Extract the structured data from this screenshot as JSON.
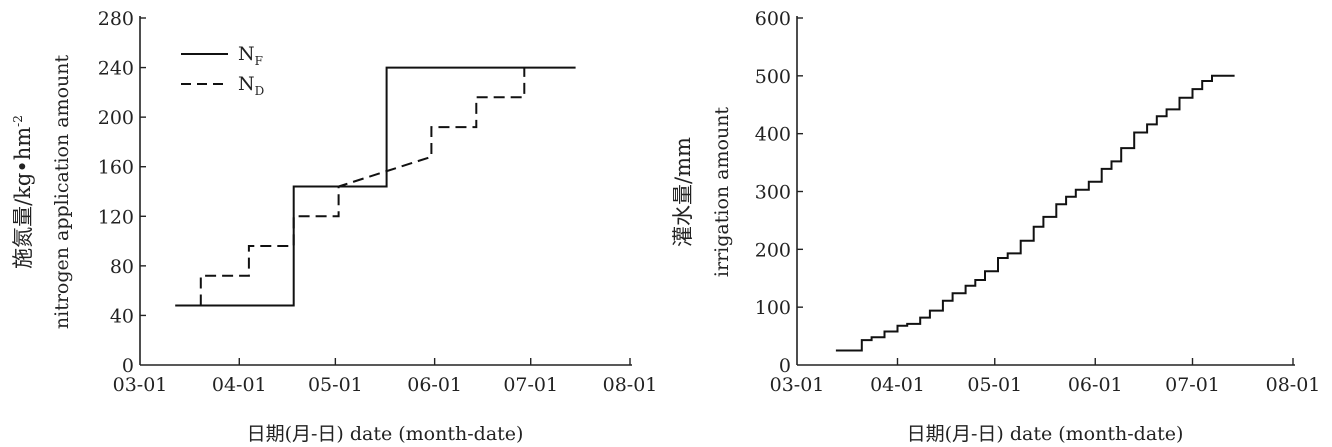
{
  "chart_data": [
    {
      "type": "line",
      "step": true,
      "title": "",
      "xlabel": "日期(月-日) date (month-date)",
      "ylabel_cn": "施氮量/kg•hm",
      "ylabel_sup": "-2",
      "ylabel_en": "nitrogen application amount",
      "x_unit": "days since 03-01",
      "xlim": [
        0,
        153
      ],
      "ylim": [
        0,
        280
      ],
      "x_ticks": [
        {
          "label": "03-01",
          "value": 0
        },
        {
          "label": "04-01",
          "value": 31
        },
        {
          "label": "05-01",
          "value": 61
        },
        {
          "label": "06-01",
          "value": 92
        },
        {
          "label": "07-01",
          "value": 122
        },
        {
          "label": "08-01",
          "value": 153
        }
      ],
      "y_ticks": [
        0,
        40,
        80,
        120,
        160,
        200,
        240,
        280
      ],
      "legend_position": "top-left",
      "series": [
        {
          "name": "N",
          "sub": "F",
          "style": "solid",
          "x": [
            11,
            48,
            48,
            77,
            77,
            136
          ],
          "y": [
            48,
            48,
            144,
            144,
            240,
            240
          ]
        },
        {
          "name": "N",
          "sub": "D",
          "style": "dashed",
          "x": [
            19,
            19,
            34,
            34,
            48,
            48,
            62,
            62,
            91,
            91,
            105,
            105,
            120,
            120
          ],
          "y": [
            48,
            72,
            72,
            96,
            96,
            120,
            120,
            144,
            168,
            192,
            192,
            216,
            216,
            240
          ]
        }
      ]
    },
    {
      "type": "line",
      "step": true,
      "title": "",
      "xlabel": "日期(月-日) date (month-date)",
      "ylabel_cn": "灌水量/mm",
      "ylabel_en": "irrigation amount",
      "x_unit": "days since 03-01",
      "xlim": [
        0,
        153
      ],
      "ylim": [
        0,
        600
      ],
      "x_ticks": [
        {
          "label": "03-01",
          "value": 0
        },
        {
          "label": "04-01",
          "value": 31
        },
        {
          "label": "05-01",
          "value": 61
        },
        {
          "label": "06-01",
          "value": 92
        },
        {
          "label": "07-01",
          "value": 122
        },
        {
          "label": "08-01",
          "value": 153
        }
      ],
      "y_ticks": [
        0,
        100,
        200,
        300,
        400,
        500,
        600
      ],
      "series": [
        {
          "name": "irrigation",
          "style": "solid",
          "step_days": [
            12,
            20,
            23,
            27,
            31,
            34,
            38,
            41,
            45,
            48,
            52,
            55,
            58,
            62,
            65,
            69,
            73,
            76,
            80,
            83,
            86,
            90,
            94,
            97,
            100,
            104,
            108,
            111,
            114,
            118,
            122,
            125,
            128
          ],
          "step_values": [
            25,
            43,
            48,
            58,
            68,
            71,
            82,
            94,
            111,
            124,
            137,
            147,
            162,
            185,
            193,
            215,
            239,
            256,
            278,
            291,
            303,
            317,
            339,
            352,
            375,
            402,
            416,
            430,
            442,
            462,
            477,
            491,
            500
          ],
          "end_day": 135
        }
      ]
    }
  ]
}
